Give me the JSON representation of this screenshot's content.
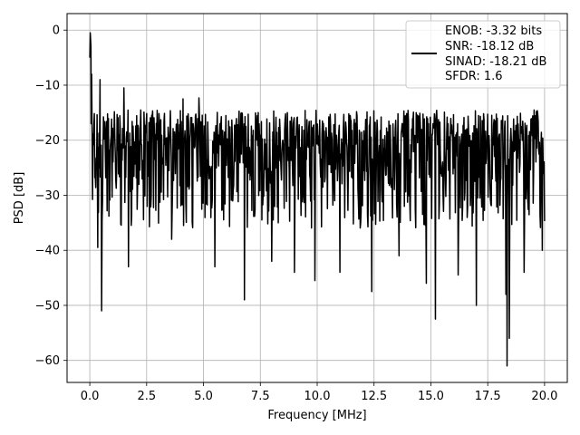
{
  "chart_data": {
    "type": "line",
    "title": "",
    "xlabel": "Frequency [MHz]",
    "ylabel": "PSD [dB]",
    "xlim": [
      -1.0,
      21.0
    ],
    "ylim": [
      -64.0,
      3.0
    ],
    "x_ticks": [
      0.0,
      2.5,
      5.0,
      7.5,
      10.0,
      12.5,
      15.0,
      17.5,
      20.0
    ],
    "x_tick_labels": [
      "0.0",
      "2.5",
      "5.0",
      "7.5",
      "10.0",
      "12.5",
      "15.0",
      "17.5",
      "20.0"
    ],
    "y_ticks": [
      0,
      -10,
      -20,
      -30,
      -40,
      -50,
      -60
    ],
    "y_tick_labels": [
      "0",
      "−10",
      "−20",
      "−30",
      "−40",
      "−50",
      "−60"
    ],
    "grid": true,
    "legend_placement": "upper-right",
    "legend_lines": [
      "ENOB: -3.32 bits",
      "SNR: -18.12 dB",
      "SINAD: -18.21 dB",
      "SFDR: 1.6"
    ],
    "series": [
      {
        "color": "#000000",
        "x_range": [
          0.0,
          20.0
        ],
        "num_points": 1000,
        "upper_envelope_db": -14.5,
        "lower_envelope_db": -32.0,
        "peaks": [
          {
            "x": 0.0,
            "y": -5.0
          },
          {
            "x": 0.02,
            "y": -0.5
          },
          {
            "x": 0.05,
            "y": -3.0
          },
          {
            "x": 0.08,
            "y": -8.0
          },
          {
            "x": 0.45,
            "y": -9.0
          },
          {
            "x": 1.5,
            "y": -10.5
          },
          {
            "x": 4.1,
            "y": -12.5
          },
          {
            "x": 4.8,
            "y": -12.3
          }
        ],
        "dips": [
          {
            "x": 0.35,
            "y": -39.5
          },
          {
            "x": 0.52,
            "y": -51.0
          },
          {
            "x": 1.7,
            "y": -43.0
          },
          {
            "x": 3.6,
            "y": -38.0
          },
          {
            "x": 5.5,
            "y": -43.0
          },
          {
            "x": 6.8,
            "y": -49.0
          },
          {
            "x": 8.0,
            "y": -42.0
          },
          {
            "x": 9.0,
            "y": -44.0
          },
          {
            "x": 9.9,
            "y": -45.5
          },
          {
            "x": 11.0,
            "y": -44.0
          },
          {
            "x": 12.4,
            "y": -47.5
          },
          {
            "x": 13.6,
            "y": -41.0
          },
          {
            "x": 14.8,
            "y": -46.0
          },
          {
            "x": 15.2,
            "y": -52.5
          },
          {
            "x": 16.2,
            "y": -44.5
          },
          {
            "x": 17.0,
            "y": -50.0
          },
          {
            "x": 18.3,
            "y": -48.0
          },
          {
            "x": 18.35,
            "y": -61.0
          },
          {
            "x": 18.45,
            "y": -56.0
          },
          {
            "x": 19.1,
            "y": -44.0
          },
          {
            "x": 19.9,
            "y": -40.0
          }
        ]
      }
    ]
  }
}
